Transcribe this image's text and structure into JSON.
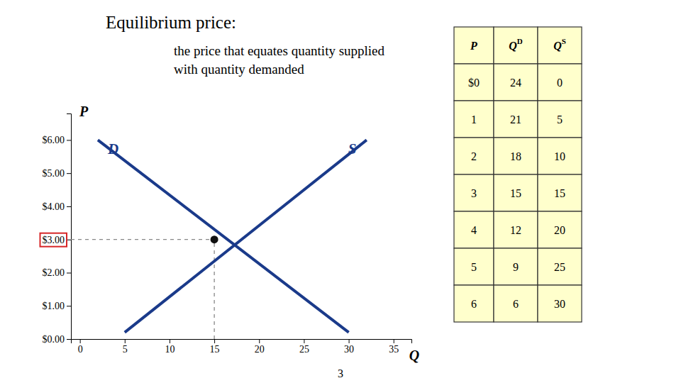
{
  "chart_data": {
    "type": "line",
    "title": "Equilibrium price:",
    "subtitle": [
      "the price that equates quantity supplied",
      "with quantity demanded"
    ],
    "x_label": "Q",
    "y_label": "P",
    "xlim": [
      -1,
      37
    ],
    "ylim": [
      0,
      6.8
    ],
    "xticks": [
      0,
      5,
      10,
      15,
      20,
      25,
      30,
      35
    ],
    "yticks": [
      {
        "value": 0,
        "label": "$0.00"
      },
      {
        "value": 1,
        "label": "$1.00"
      },
      {
        "value": 2,
        "label": "$2.00"
      },
      {
        "value": 3,
        "label": "$3.00"
      },
      {
        "value": 4,
        "label": "$4.00"
      },
      {
        "value": 5,
        "label": "$5.00"
      },
      {
        "value": 6,
        "label": "$6.00"
      }
    ],
    "series": [
      {
        "name": "D",
        "color": "#1a3a8a",
        "x": [
          2,
          30
        ],
        "values": [
          6.0,
          0.2
        ]
      },
      {
        "name": "S",
        "color": "#1a3a8a",
        "x": [
          5,
          32
        ],
        "values": [
          0.2,
          6.0
        ]
      }
    ],
    "equilibrium": {
      "x": 15,
      "y": 3.0
    },
    "table": {
      "columns": [
        "P",
        "QD",
        "QS"
      ],
      "rows": [
        [
          "$0",
          "24",
          "0"
        ],
        [
          "1",
          "21",
          "5"
        ],
        [
          "2",
          "18",
          "10"
        ],
        [
          "3",
          "15",
          "15"
        ],
        [
          "4",
          "12",
          "20"
        ],
        [
          "5",
          "9",
          "25"
        ],
        [
          "6",
          "6",
          "30"
        ]
      ]
    },
    "page_number": "3"
  }
}
